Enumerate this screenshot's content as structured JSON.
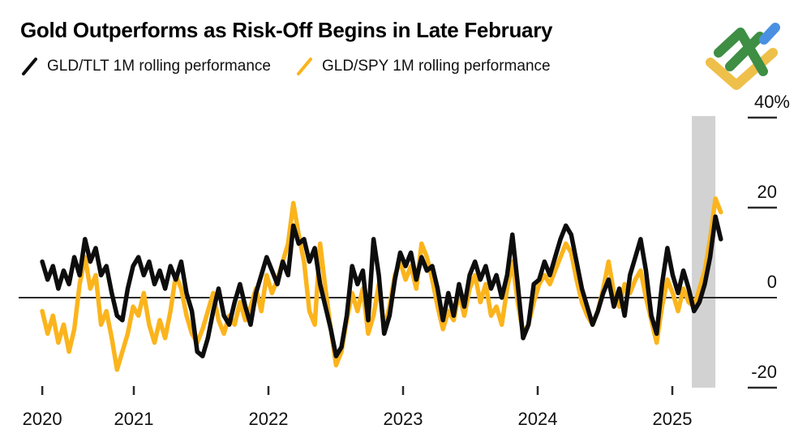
{
  "header": {
    "title": "Gold Outperforms as Risk-Off Begins in Late February"
  },
  "legend": {
    "items": [
      {
        "label": "GLD/TLT 1M rolling performance",
        "color_key": "series_black"
      },
      {
        "label": "GLD/SPY 1M rolling performance",
        "color_key": "series_yellow"
      }
    ]
  },
  "colors": {
    "series_black": "#0d0d0d",
    "series_yellow": "#fbb41c",
    "band": "#d2d2d2",
    "axis": "#2b2b2b",
    "text": "#111111",
    "logo_green": "#3e8e44",
    "logo_blue": "#4a90e2",
    "logo_yellow": "#eec04a"
  },
  "chart_data": {
    "type": "line",
    "title": "Gold Outperforms as Risk-Off Begins in Late February",
    "x_unit": "year (decimal)",
    "xlim": [
      2020.32,
      2025.36
    ],
    "ylim": [
      -24,
      41
    ],
    "grid": false,
    "legend_position": "top-left",
    "x_ticks": [
      {
        "label": "2020",
        "t": 2020.32
      },
      {
        "label": "2021",
        "t": 2021.0
      },
      {
        "label": "2022",
        "t": 2022.0
      },
      {
        "label": "2023",
        "t": 2023.0
      },
      {
        "label": "2024",
        "t": 2024.0
      },
      {
        "label": "2025",
        "t": 2025.0
      }
    ],
    "y_ticks": [
      {
        "label": "40%",
        "v": 40
      },
      {
        "label": "20",
        "v": 20
      },
      {
        "label": "0",
        "v": 0
      },
      {
        "label": "-20",
        "v": -20
      }
    ],
    "zero_line": 0,
    "highlight_band": {
      "t0": 2025.145,
      "t1": 2025.32,
      "v0": -20,
      "v1": 40.35
    },
    "series": [
      {
        "name": "GLD/TLT 1M rolling performance",
        "color_key": "series_black",
        "unit": "%",
        "values": [
          8,
          4,
          7,
          2,
          6,
          3,
          9,
          5,
          13,
          8,
          11,
          5,
          7,
          1,
          -4,
          -5,
          2,
          7,
          9,
          5,
          8,
          3,
          6,
          2,
          7,
          4,
          8,
          1,
          -3,
          -12,
          -13,
          -9,
          -3,
          2,
          -4,
          -6,
          -1,
          3,
          -2,
          -6,
          1,
          5,
          9,
          6,
          3,
          8,
          5,
          16,
          12,
          13,
          8,
          11,
          3,
          -2,
          -7,
          -13,
          -11,
          -4,
          7,
          3,
          6,
          -5,
          13,
          5,
          -8,
          -4,
          4,
          10,
          7,
          10,
          4,
          9,
          6,
          7,
          2,
          -5,
          1,
          -4,
          3,
          -2,
          5,
          8,
          4,
          7,
          2,
          5,
          0,
          5,
          14,
          3,
          -9,
          -6,
          3,
          4,
          8,
          5,
          9,
          13,
          16,
          14,
          8,
          2,
          -2,
          -6,
          -3,
          1,
          4,
          -2,
          2,
          -4,
          5,
          9,
          13,
          6,
          -4,
          -8,
          3,
          11,
          5,
          1,
          6,
          2,
          -3,
          -1,
          3,
          9,
          18,
          13
        ]
      },
      {
        "name": "GLD/SPY 1M rolling performance",
        "color_key": "series_yellow",
        "unit": "%",
        "values": [
          -3,
          -8,
          -4,
          -10,
          -6,
          -12,
          -7,
          3,
          9,
          2,
          5,
          -6,
          -3,
          -9,
          -16,
          -12,
          -8,
          -2,
          -4,
          1,
          -6,
          -10,
          -5,
          -9,
          -3,
          5,
          2,
          -4,
          -8,
          -10,
          -7,
          -3,
          1,
          -5,
          -8,
          -4,
          -6,
          -1,
          -5,
          -2,
          2,
          -3,
          5,
          1,
          4,
          8,
          12,
          21,
          14,
          8,
          -3,
          -6,
          12,
          2,
          -7,
          -15,
          -12,
          -5,
          1,
          -3,
          2,
          -8,
          -4,
          3,
          -7,
          -2,
          5,
          8,
          4,
          7,
          2,
          12,
          9,
          4,
          -2,
          -7,
          -3,
          -5,
          1,
          -4,
          2,
          5,
          -1,
          3,
          -4,
          -2,
          -6,
          2,
          8,
          -1,
          -8,
          -6,
          -1,
          3,
          5,
          3,
          6,
          9,
          12,
          10,
          4,
          -1,
          -4,
          -6,
          -3,
          2,
          8,
          1,
          -2,
          3,
          1,
          4,
          6,
          0,
          -5,
          -10,
          -2,
          4,
          1,
          -3,
          2,
          -1,
          -2,
          2,
          6,
          13,
          22,
          19
        ]
      }
    ]
  }
}
